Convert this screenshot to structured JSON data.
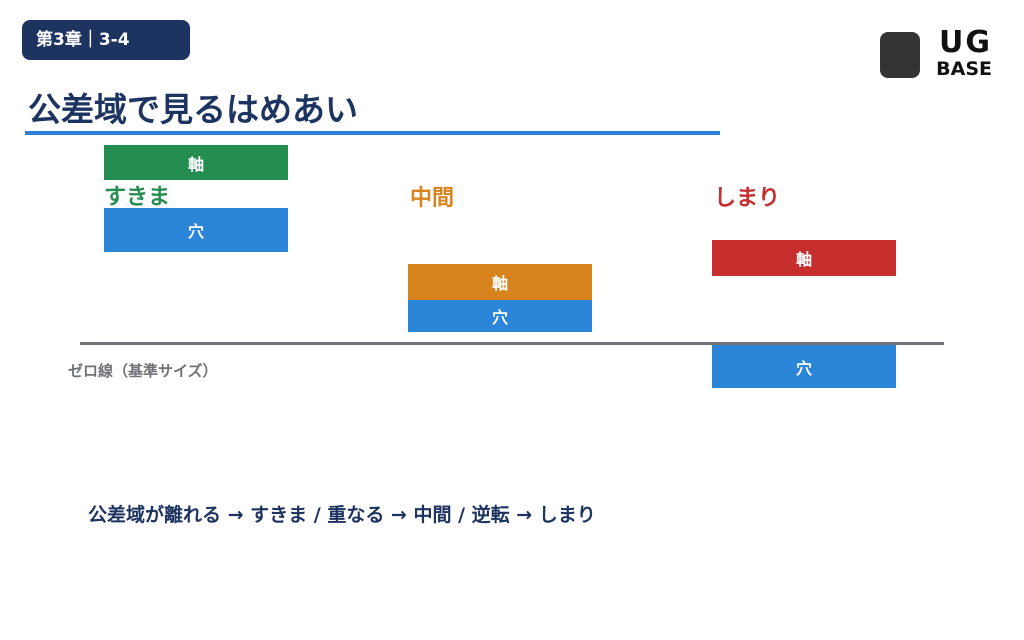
{
  "header": {
    "chapter": "第3章｜3-4",
    "logo": {
      "top": "UG",
      "bottom": "BASE"
    }
  },
  "title": "公差域で見るはめあい",
  "groups": [
    {
      "label": "すきま",
      "shaft": "軸",
      "hole": "穴"
    },
    {
      "label": "中間",
      "shaft": "軸",
      "hole": "穴"
    },
    {
      "label": "しまり",
      "shaft": "軸",
      "hole": "穴"
    }
  ],
  "zero_line_label": "ゼロ線（基準サイズ）",
  "summary": "公差域が離れる → すきま / 重なる → 中間 / 逆転 → しまり"
}
